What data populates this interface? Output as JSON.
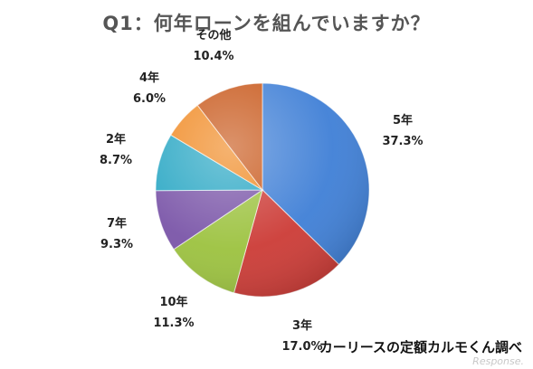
{
  "chart_data": {
    "type": "pie",
    "title": "Q1：何年ローンを組んでいますか？",
    "slices": [
      {
        "name": "5年",
        "value": 37.3,
        "label": "37.3%",
        "color": "#3f7fd6"
      },
      {
        "name": "3年",
        "value": 17.0,
        "label": "17.0%",
        "color": "#cc3b36"
      },
      {
        "name": "10年",
        "value": 11.3,
        "label": "11.3%",
        "color": "#9cc23f"
      },
      {
        "name": "7年",
        "value": 9.3,
        "label": "9.3%",
        "color": "#7a55a8"
      },
      {
        "name": "2年",
        "value": 8.7,
        "label": "8.7%",
        "color": "#2aa7c4"
      },
      {
        "name": "4年",
        "value": 6.0,
        "label": "6.0%",
        "color": "#f08a24"
      },
      {
        "name": "その他",
        "value": 10.4,
        "label": "10.4%",
        "color": "#c8581b"
      }
    ],
    "start_angle": "12 o'clock",
    "direction": "clockwise"
  },
  "source": "カーリースの定額カルモくん調べ",
  "watermark": "Response."
}
